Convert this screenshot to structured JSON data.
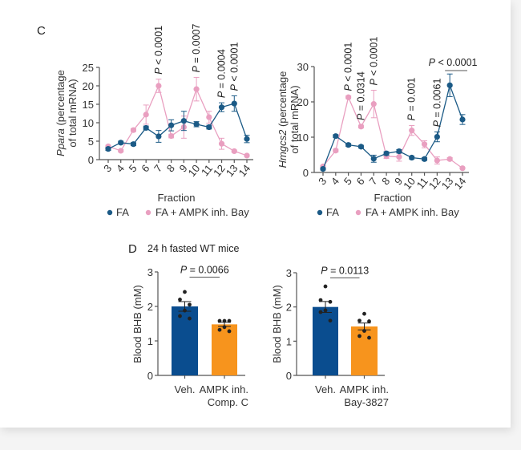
{
  "panels": {
    "C": {
      "label": "C"
    },
    "D": {
      "label": "D",
      "subtitle": "24 h fasted WT mice"
    }
  },
  "colors": {
    "fa": "#1b5a86",
    "bay": "#e99fc0",
    "veh_bar": "#0a4d8f",
    "inh_bar": "#f7941d",
    "axis": "#555555"
  },
  "chart_data": [
    {
      "id": "ppara",
      "type": "line",
      "title": "",
      "xlabel": "Fraction",
      "ylabel_italic": "Ppara",
      "ylabel_rest": " (percentage",
      "ylabel_line2": "of total mRNA)",
      "x": [
        3,
        4,
        5,
        6,
        7,
        8,
        9,
        10,
        11,
        12,
        13,
        14
      ],
      "xticks": [
        "3",
        "4",
        "5",
        "6",
        "7",
        "8",
        "9",
        "10",
        "11",
        "12",
        "13",
        "14"
      ],
      "yticks": [
        "0",
        "5",
        "10",
        "15",
        "20",
        "25"
      ],
      "ylim": [
        0,
        25
      ],
      "series": [
        {
          "name": "FA",
          "color": "#1b5a86",
          "values": [
            2.9,
            4.6,
            4.2,
            8.6,
            6.3,
            9.3,
            10.5,
            9.6,
            8.8,
            14.2,
            15.2,
            5.6
          ],
          "errors": [
            0.4,
            0.4,
            0.4,
            0.5,
            1.6,
            1.5,
            2.6,
            0.7,
            0.5,
            1.2,
            2.1,
            1.0
          ]
        },
        {
          "name": "FA + AMPK inh. Bay",
          "color": "#e99fc0",
          "values": [
            3.6,
            2.4,
            8.0,
            12.2,
            20.0,
            6.4,
            8.8,
            19.1,
            11.5,
            4.3,
            2.3,
            1.1
          ],
          "errors": [
            0.3,
            0.3,
            0.4,
            2.6,
            1.8,
            0.5,
            3.0,
            3.2,
            1.6,
            1.5,
            0.3,
            0.2
          ]
        }
      ],
      "annotations": [
        {
          "x": 7,
          "italic": "P",
          "text": " < 0.0001"
        },
        {
          "x": 10,
          "italic": "P",
          "text": " = 0.0007"
        },
        {
          "x": 12,
          "italic": "P",
          "text": " = 0.0004"
        },
        {
          "x": 13,
          "italic": "P",
          "text": " < 0.0001"
        }
      ],
      "legend": [
        "FA",
        "FA + AMPK inh. Bay"
      ],
      "legend_position": "bottom"
    },
    {
      "id": "hmgcs2",
      "type": "line",
      "title": "",
      "xlabel": "Fraction",
      "ylabel_italic": "Hmgcs2",
      "ylabel_rest": " (percentage",
      "ylabel_line2": "of total mRNA)",
      "x": [
        3,
        4,
        5,
        6,
        7,
        8,
        9,
        10,
        11,
        12,
        13,
        14
      ],
      "xticks": [
        "3",
        "4",
        "5",
        "6",
        "7",
        "8",
        "9",
        "10",
        "11",
        "12",
        "13",
        "14"
      ],
      "yticks": [
        "0",
        "10",
        "20",
        "30"
      ],
      "ylim": [
        0,
        30
      ],
      "series": [
        {
          "name": "FA",
          "color": "#1b5a86",
          "values": [
            1.0,
            10.3,
            7.8,
            7.3,
            3.9,
            5.4,
            6.0,
            4.2,
            3.8,
            10.1,
            24.7,
            15.0
          ],
          "errors": [
            0.3,
            0.4,
            0.4,
            0.4,
            1.0,
            0.5,
            0.5,
            0.4,
            0.4,
            1.4,
            3.2,
            1.4
          ]
        },
        {
          "name": "FA + AMPK inh. Bay",
          "color": "#e99fc0",
          "values": [
            1.7,
            6.2,
            21.3,
            13.0,
            19.4,
            4.6,
            4.4,
            11.9,
            8.0,
            3.4,
            3.8,
            1.2
          ],
          "errors": [
            0.3,
            0.4,
            0.4,
            0.4,
            3.9,
            0.6,
            1.2,
            1.4,
            1.0,
            1.0,
            0.4,
            0.2
          ]
        }
      ],
      "annotations": [
        {
          "x": 5,
          "italic": "P",
          "text": " < 0.0001"
        },
        {
          "x": 6,
          "italic": "P",
          "text": " = 0.0314"
        },
        {
          "x": 7,
          "italic": "P",
          "text": " < 0.0001"
        },
        {
          "x": 10,
          "italic": "P",
          "text": " = 0.001"
        },
        {
          "x": 12,
          "italic": "P",
          "text": " = 0.0061"
        }
      ],
      "bracket_annotation": {
        "from": 13,
        "to": 14,
        "italic": "P",
        "text": " < 0.0001"
      },
      "legend": [
        "FA",
        "FA + AMPK inh. Bay"
      ],
      "legend_position": "bottom"
    },
    {
      "id": "bhb_compc",
      "type": "bar",
      "ylabel": "Blood BHB (mM)",
      "yticks": [
        "0",
        "1",
        "2",
        "3"
      ],
      "ylim": [
        0,
        3
      ],
      "categories": [
        "Veh.",
        "AMPK inh."
      ],
      "category_line2": [
        "",
        "Comp. C"
      ],
      "values": [
        2.0,
        1.48
      ],
      "errors": [
        0.14,
        0.06
      ],
      "points": [
        [
          2.42,
          2.2,
          2.05,
          1.88,
          1.72,
          1.65
        ],
        [
          1.58,
          1.58,
          1.58,
          1.4,
          1.32,
          1.28
        ]
      ],
      "significance": {
        "italic": "P",
        "text": " = 0.0066"
      }
    },
    {
      "id": "bhb_bay",
      "type": "bar",
      "ylabel": "Blood BHB (mM)",
      "yticks": [
        "0",
        "1",
        "2",
        "3"
      ],
      "ylim": [
        0,
        3
      ],
      "categories": [
        "Veh.",
        "AMPK inh."
      ],
      "category_line2": [
        "",
        "Bay-3827"
      ],
      "values": [
        2.0,
        1.43
      ],
      "errors": [
        0.16,
        0.1
      ],
      "points": [
        [
          2.6,
          2.2,
          2.15,
          1.9,
          1.85,
          1.6
        ],
        [
          1.8,
          1.6,
          1.58,
          1.3,
          1.15,
          1.1
        ]
      ],
      "significance": {
        "italic": "P",
        "text": " = 0.0113"
      }
    }
  ]
}
